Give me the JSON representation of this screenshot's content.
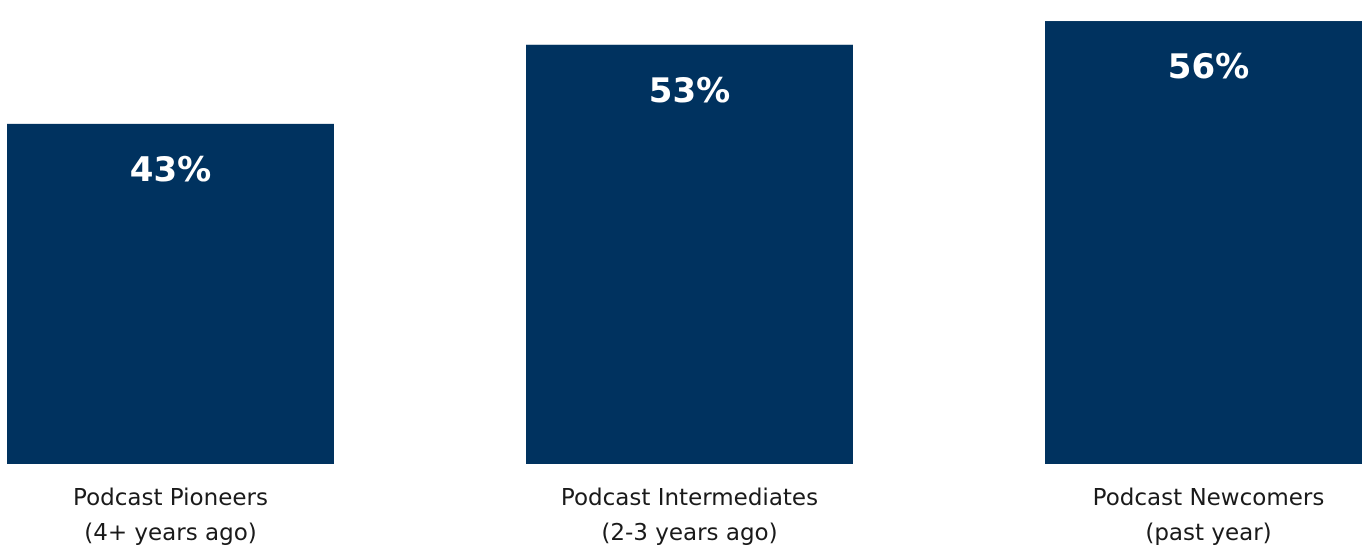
{
  "chart_data": {
    "type": "bar",
    "categories": [
      [
        "Podcast Pioneers",
        "(4+ years ago)"
      ],
      [
        "Podcast Intermediates",
        "(2-3 years ago)"
      ],
      [
        "Podcast Newcomers",
        "(past year)"
      ]
    ],
    "values": [
      43,
      53,
      56
    ],
    "value_labels": [
      "43%",
      "53%",
      "56%"
    ],
    "unit": "%",
    "title": "",
    "xlabel": "",
    "ylabel": "",
    "ylim": [
      0,
      56
    ],
    "grid": false,
    "legend": "none",
    "bar_color": "#00325F"
  }
}
